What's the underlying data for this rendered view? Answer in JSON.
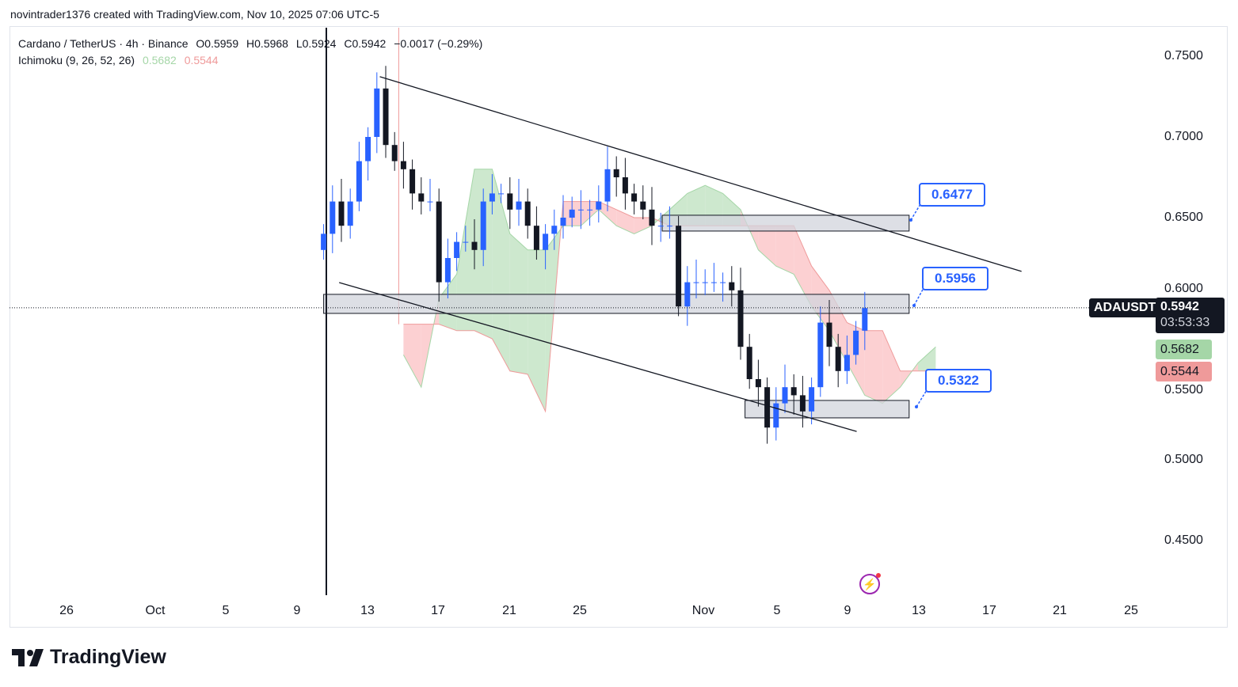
{
  "credit": "novintrader1376 created with TradingView.com, Nov 10, 2025 07:06 UTC-5",
  "legend": {
    "symbol": "Cardano / TetherUS · 4h · Binance",
    "open": "O0.5959",
    "high": "H0.5968",
    "low": "L0.5924",
    "close": "C0.5942",
    "change": "−0.0017 (−0.29%)",
    "indicator": "Ichimoku (9, 26, 52, 26)",
    "ind_a": "0.5682",
    "ind_b": "0.5544"
  },
  "price_tag": {
    "ticker": "ADAUSDT",
    "price": "0.5942",
    "countdown": "03:53:33"
  },
  "cloud_tags": {
    "span_a": "0.5682",
    "span_b": "0.5544"
  },
  "callouts": [
    "0.6477",
    "0.5956",
    "0.5322"
  ],
  "colors": {
    "up": "#2962ff",
    "down": "#131722",
    "cloud_bull": "#c8e6c9",
    "cloud_bear": "#fccbcd",
    "span_a": "#a5d6a7",
    "span_b": "#ef9a9a",
    "zone": "#d1d4dc"
  },
  "branding": "TradingView",
  "chart_data": {
    "type": "candlestick",
    "interval": "12h",
    "start": "10-10 12",
    "closes": [
      0.64,
      0.66,
      0.645,
      0.66,
      0.685,
      0.7,
      0.73,
      0.695,
      0.685,
      0.68,
      0.665,
      0.66,
      0.66,
      0.61,
      0.625,
      0.635,
      0.635,
      0.63,
      0.66,
      0.665,
      0.665,
      0.655,
      0.66,
      0.645,
      0.63,
      0.64,
      0.645,
      0.65,
      0.655,
      0.655,
      0.655,
      0.66,
      0.68,
      0.675,
      0.665,
      0.66,
      0.655,
      0.645,
      0.645,
      0.645,
      0.595,
      0.61,
      0.61,
      0.61,
      0.61,
      0.61,
      0.605,
      0.57,
      0.55,
      0.545,
      0.52,
      0.535,
      0.545,
      0.54,
      0.53,
      0.545,
      0.585,
      0.57,
      0.555,
      0.565,
      0.58,
      0.594
    ],
    "ichimoku": {
      "start": "10-15 00",
      "interval": "1d",
      "span_a": [
        0.565,
        0.545,
        0.6,
        0.615,
        0.68,
        0.68,
        0.64,
        0.63,
        0.63,
        0.645,
        0.645,
        0.655,
        0.645,
        0.64,
        0.645,
        0.655,
        0.665,
        0.67,
        0.665,
        0.655,
        0.63,
        0.62,
        0.615,
        0.595,
        0.58,
        0.56,
        0.54,
        0.535,
        0.545,
        0.56,
        0.57
      ],
      "span_b": [
        0.584,
        0.584,
        0.584,
        0.58,
        0.58,
        0.575,
        0.555,
        0.553,
        0.53,
        0.66,
        0.66,
        0.66,
        0.655,
        0.65,
        0.65,
        0.645,
        0.645,
        0.645,
        0.645,
        0.645,
        0.645,
        0.645,
        0.645,
        0.62,
        0.605,
        0.585,
        0.58,
        0.58,
        0.555,
        0.555,
        0.555
      ]
    },
    "trendlines": [
      {
        "from": [
          "10-13 16",
          0.7373
        ],
        "to": [
          "11-18 20",
          0.6167
        ]
      },
      {
        "from": [
          "10-11 09",
          0.6098
        ],
        "to": [
          "11-09 13",
          0.5176
        ]
      }
    ],
    "zones": [
      {
        "from": "10-29 14",
        "to": "11-12 12",
        "top": 0.6515,
        "bottom": 0.6417
      },
      {
        "from": "10-10 12",
        "to": "11-12 12",
        "top": 0.6025,
        "bottom": 0.5907
      },
      {
        "from": "11-03 06",
        "to": "11-12 12",
        "top": 0.5368,
        "bottom": 0.526
      }
    ],
    "last_price": 0.5942,
    "y_ticks": [
      "0.7500",
      "0.7000",
      "0.6500",
      "0.6000",
      "0.5500",
      "0.5000",
      "0.4500"
    ],
    "x_ticks": [
      "26",
      "Oct",
      "5",
      "9",
      "13",
      "17",
      "21",
      "25",
      "Nov",
      "5",
      "9",
      "13",
      "17",
      "21",
      "25"
    ],
    "ylim": [
      0.42,
      0.77
    ]
  }
}
